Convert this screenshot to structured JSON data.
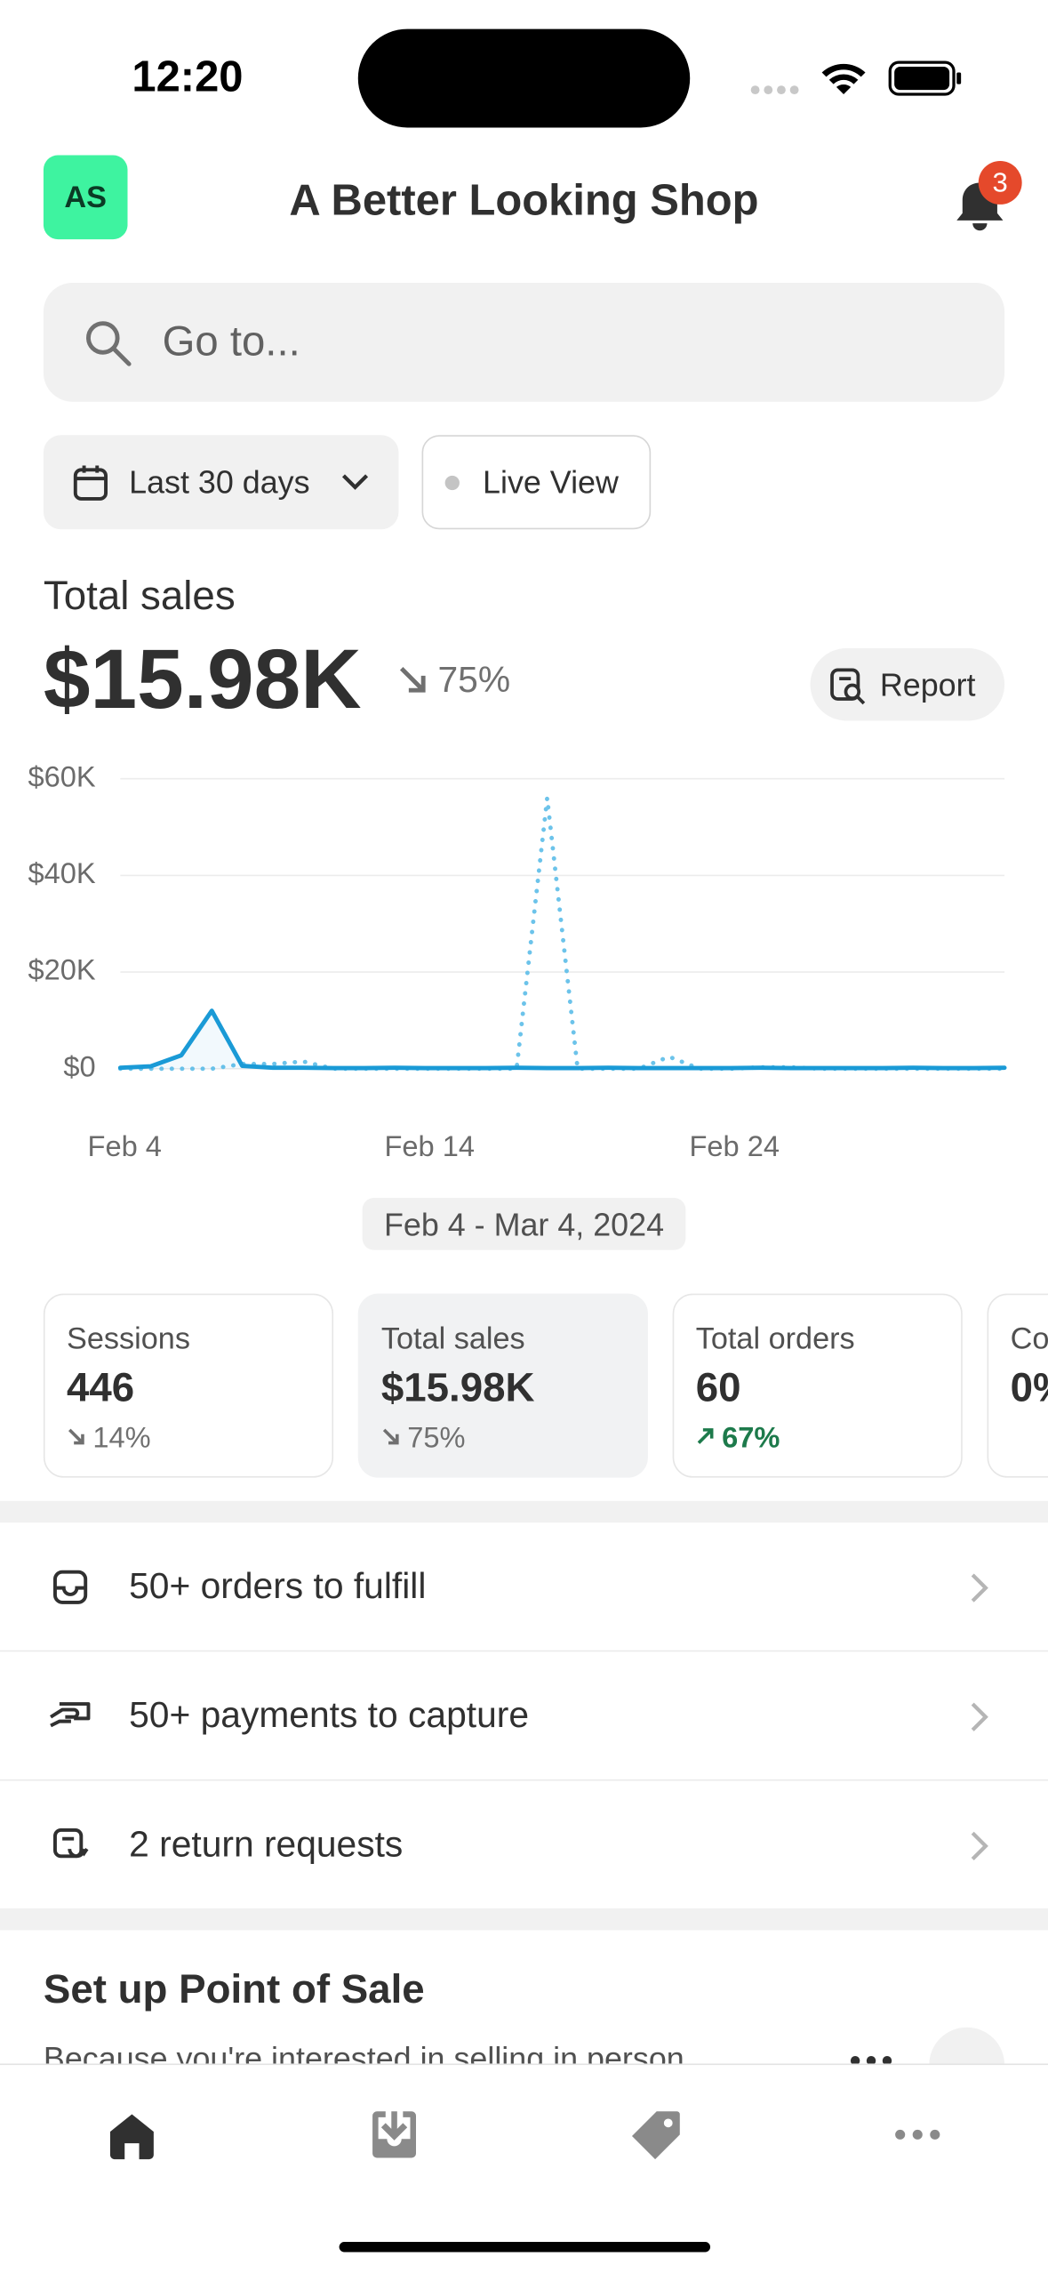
{
  "status_bar": {
    "time": "12:20"
  },
  "header": {
    "avatar": "AS",
    "title": "A Better Looking Shop",
    "notification_count": "3"
  },
  "search": {
    "placeholder": "Go to..."
  },
  "filters": {
    "date_range": "Last 30 days",
    "live_view": "Live View"
  },
  "summary": {
    "label": "Total sales",
    "value": "$15.98K",
    "change": "75%",
    "report": "Report"
  },
  "chart_data": {
    "type": "line",
    "categories": [
      "Feb 4",
      null,
      null,
      null,
      null,
      null,
      null,
      null,
      null,
      null,
      "Feb 14",
      null,
      null,
      null,
      null,
      null,
      null,
      null,
      null,
      null,
      "Feb 24",
      null,
      null,
      null,
      null,
      null,
      null,
      null,
      null,
      null
    ],
    "series": [
      {
        "color": "#1a9ad6",
        "style": "solid",
        "values": [
          200,
          500,
          2800,
          12000,
          600,
          200,
          200,
          150,
          150,
          200,
          150,
          150,
          150,
          200,
          150,
          150,
          200,
          150,
          150,
          150,
          150,
          200,
          150,
          150,
          150,
          150,
          200,
          150,
          150,
          200
        ]
      },
      {
        "color": "#6cc3ea",
        "style": "dotted",
        "values": [
          0,
          0,
          0,
          0,
          1000,
          1000,
          1500,
          0,
          0,
          0,
          0,
          0,
          0,
          0,
          56000,
          0,
          0,
          0,
          2500,
          0,
          0,
          300,
          300,
          0,
          0,
          0,
          0,
          0,
          0,
          0
        ]
      }
    ],
    "ylim": [
      0,
      60000
    ],
    "yticks": [
      {
        "value": 0,
        "label": "$0"
      },
      {
        "value": 20000,
        "label": "$20K"
      },
      {
        "value": 40000,
        "label": "$40K"
      },
      {
        "value": 60000,
        "label": "$60K"
      }
    ],
    "grid": true
  },
  "date_range_label": "Feb 4 - Mar 4, 2024",
  "metrics": [
    {
      "label": "Sessions",
      "value": "446",
      "change": "14%",
      "trend": "down"
    },
    {
      "label": "Total sales",
      "value": "$15.98K",
      "change": "75%",
      "trend": "down"
    },
    {
      "label": "Total orders",
      "value": "60",
      "change": "67%",
      "trend": "up"
    },
    {
      "label": "Co",
      "value": "0%"
    }
  ],
  "tasks": [
    "50+ orders to fulfill",
    "50+ payments to capture",
    "2 return requests"
  ],
  "pos_card": {
    "title": "Set up Point of Sale",
    "text": "Because you're interested in selling in person"
  }
}
